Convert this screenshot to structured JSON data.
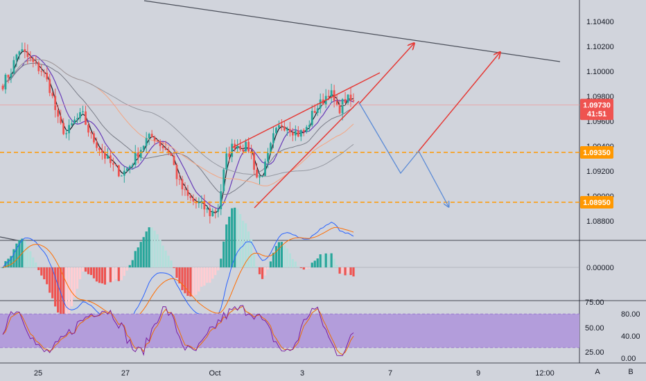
{
  "chart_data": [
    {
      "type": "candlestick",
      "title": "",
      "y_ticks": [
        "1.10400",
        "1.10200",
        "1.10000",
        "1.09800",
        "1.09600",
        "1.09400",
        "1.09200",
        "1.09000",
        "1.08800"
      ],
      "ylim": [
        1.0873,
        1.1059
      ],
      "x_ticks": [
        "25",
        "27",
        "Oct",
        "3",
        "7",
        "9",
        "12:00"
      ],
      "price_tags": [
        {
          "label": "1.09730",
          "value": 1.0973,
          "color": "#ef5350"
        },
        {
          "label": "41:51",
          "value": 1.0966,
          "color": "#ef5350"
        },
        {
          "label": "1.09350",
          "value": 1.0935,
          "color": "#ff9800"
        },
        {
          "label": "1.08950",
          "value": 1.0895,
          "color": "#ff9800"
        }
      ],
      "horizontal_levels": [
        {
          "value": 1.0935,
          "color": "#ff9800",
          "style": "dashed"
        },
        {
          "value": 1.0895,
          "color": "#ff9800",
          "style": "dashed"
        },
        {
          "value": 1.0973,
          "color": "#ef9a9a",
          "style": "solid"
        }
      ],
      "price_path_anchors": [
        [
          0,
          1.099
        ],
        [
          1,
          1.1
        ],
        [
          2,
          1.1018
        ],
        [
          3,
          1.1012
        ],
        [
          4,
          1.1005
        ],
        [
          5,
          1.1
        ],
        [
          6,
          1.0985
        ],
        [
          7,
          1.0958
        ],
        [
          8,
          1.095
        ],
        [
          9,
          1.096
        ],
        [
          10,
          1.0965
        ],
        [
          11,
          1.0948
        ],
        [
          12,
          1.094
        ],
        [
          13,
          1.093
        ],
        [
          14,
          1.0922
        ],
        [
          15,
          1.0918
        ],
        [
          16,
          1.0925
        ],
        [
          17,
          1.0935
        ],
        [
          18,
          1.0945
        ],
        [
          19,
          1.0948
        ],
        [
          20,
          1.094
        ],
        [
          21,
          1.0935
        ],
        [
          22,
          1.0912
        ],
        [
          23,
          1.09
        ],
        [
          24,
          1.0895
        ],
        [
          25,
          1.0892
        ],
        [
          26,
          1.0886
        ],
        [
          27,
          1.089
        ],
        [
          28,
          1.093
        ],
        [
          29,
          1.0942
        ],
        [
          30,
          1.094
        ],
        [
          31,
          1.0938
        ],
        [
          32,
          1.0912
        ],
        [
          33,
          1.0925
        ],
        [
          34,
          1.0948
        ],
        [
          35,
          1.0958
        ],
        [
          36,
          1.0955
        ],
        [
          37,
          1.095
        ],
        [
          38,
          1.0952
        ],
        [
          39,
          1.0968
        ],
        [
          40,
          1.0975
        ],
        [
          41,
          1.0985
        ],
        [
          42,
          1.0968
        ],
        [
          43,
          1.0978
        ],
        [
          44,
          1.0975
        ]
      ],
      "series": [
        {
          "name": "",
          "color": "#131722",
          "period": 3
        },
        {
          "name": "",
          "color": "#673ab7",
          "period": 8
        },
        {
          "name": "",
          "color": "#787b86",
          "period": 20
        },
        {
          "name": "",
          "color": "#f4a582",
          "period": 34
        },
        {
          "name": "",
          "color": "#9598a1",
          "period": 55
        }
      ],
      "colors": {
        "up": "#26a69a",
        "down": "#ef5350",
        "background": "#d1d4dc",
        "trendline": "#e53935",
        "projection_down": "#5b8bd6",
        "projection_up": "#e53935"
      }
    },
    {
      "type": "macd",
      "y_ticks": [
        "0.00000"
      ],
      "colors": {
        "macd": "#2962ff",
        "signal": "#ff6d00",
        "hist_up": "#26a69a",
        "hist_up_fade": "#b2dfdb",
        "hist_down": "#ef5350",
        "hist_down_fade": "#ffcdd2"
      }
    },
    {
      "type": "stoch_rsi",
      "left_ticks": [
        "75.00",
        "50.00",
        "25.00"
      ],
      "right_ticks": [
        "80.00",
        "40.00",
        "0.00"
      ],
      "band": [
        20,
        80
      ],
      "colors": {
        "k": "#7b1fa2",
        "d": "#ef6c00",
        "band": "#b39ddb"
      }
    }
  ],
  "scale_buttons": [
    "A",
    "B"
  ]
}
